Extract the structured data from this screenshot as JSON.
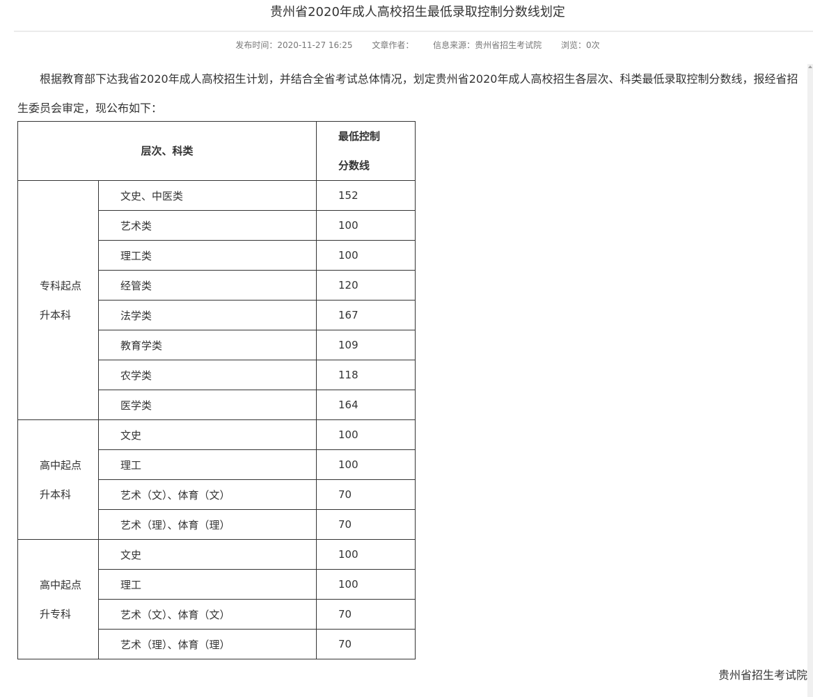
{
  "title": "贵州省2020年成人高校招生最低录取控制分数线划定",
  "meta": {
    "publish": "发布时间：2020-11-27 16:25",
    "author": "文章作者：",
    "source": "信息来源：贵州省招生考试院",
    "views": "浏览：0次"
  },
  "paragraph": "根据教育部下达我省2020年成人高校招生计划，并结合全省考试总体情况，划定贵州省2020年成人高校招生各层次、科类最低录取控制分数线，报经省招生委员会审定，现公布如下：",
  "table": {
    "header": {
      "category": "层次、科类",
      "score_line1": "最低控制",
      "score_line2": "分数线"
    },
    "groups": [
      {
        "level_line1": "专科起点",
        "level_line2": "升本科",
        "rows": [
          {
            "subject": "文史、中医类",
            "score": "152"
          },
          {
            "subject": "艺术类",
            "score": "100"
          },
          {
            "subject": "理工类",
            "score": "100"
          },
          {
            "subject": "经管类",
            "score": "120"
          },
          {
            "subject": "法学类",
            "score": "167"
          },
          {
            "subject": "教育学类",
            "score": "109"
          },
          {
            "subject": "农学类",
            "score": "118"
          },
          {
            "subject": "医学类",
            "score": "164"
          }
        ]
      },
      {
        "level_line1": "高中起点",
        "level_line2": "升本科",
        "rows": [
          {
            "subject": "文史",
            "score": "100"
          },
          {
            "subject": "理工",
            "score": "100"
          },
          {
            "subject": "艺术（文）、体育（文）",
            "score": "70"
          },
          {
            "subject": "艺术（理）、体育（理）",
            "score": "70"
          }
        ]
      },
      {
        "level_line1": "高中起点",
        "level_line2": "升专科",
        "rows": [
          {
            "subject": "文史",
            "score": "100"
          },
          {
            "subject": "理工",
            "score": "100"
          },
          {
            "subject": "艺术（文）、体育（文）",
            "score": "70"
          },
          {
            "subject": "艺术（理）、体育（理）",
            "score": "70"
          }
        ]
      }
    ]
  },
  "signature": "贵州省招生考试院"
}
